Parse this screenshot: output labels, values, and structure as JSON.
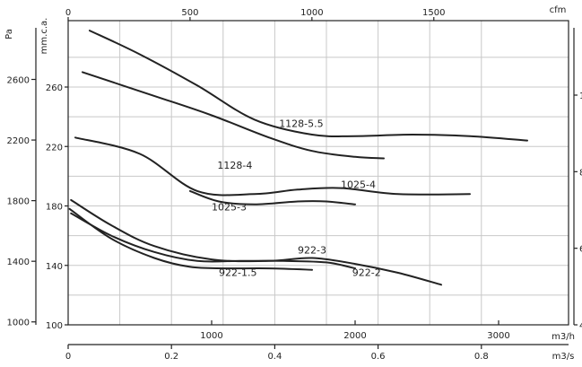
{
  "chart_data": {
    "type": "line",
    "title": "",
    "xlabel": "m3/h",
    "ylabel": "mm.c.a.",
    "xlim": [
      0,
      3500
    ],
    "ylim": [
      100,
      300
    ],
    "grid": true,
    "legend": "none",
    "axes": {
      "bottom": {
        "unit": "m3/h",
        "ticks": [
          1000,
          2000,
          3000
        ]
      },
      "bottom_secondary": {
        "unit": "m3/s",
        "ticks": [
          0,
          0.2,
          0.4,
          0.6,
          0.8
        ]
      },
      "top": {
        "unit": "cfm",
        "ticks": [
          0,
          500,
          1000,
          1500
        ]
      },
      "left_mm": {
        "unit": "mm.c.a.",
        "ticks": [
          100,
          140,
          180,
          220,
          260
        ]
      },
      "left_pa": {
        "unit": "Pa",
        "ticks": [
          1000,
          1400,
          1800,
          2200,
          2600
        ]
      },
      "right": {
        "unit": "",
        "ticks": [
          4,
          6,
          8,
          10
        ]
      }
    },
    "series": [
      {
        "name": "1128-5.5",
        "x": [
          150,
          500,
          900,
          1300,
          1700,
          2000,
          2400,
          2800,
          3200
        ],
        "y": [
          298,
          282,
          261,
          238,
          228,
          227,
          228,
          227,
          224
        ]
      },
      {
        "name": "1128-4",
        "x": [
          100,
          600,
          1000,
          1400,
          1700,
          2000,
          2200
        ],
        "y": [
          270,
          254,
          241,
          226,
          217,
          213,
          212
        ]
      },
      {
        "name": "1025-4",
        "x": [
          50,
          500,
          900,
          1300,
          1600,
          1900,
          2300,
          2800
        ],
        "y": [
          226,
          215,
          190,
          188,
          191,
          192,
          188,
          188
        ]
      },
      {
        "name": "1025-3",
        "x": [
          850,
          1050,
          1300,
          1600,
          1800,
          2000
        ],
        "y": [
          190,
          183,
          181,
          183,
          183,
          181
        ]
      },
      {
        "name": "922-3",
        "x": [
          20,
          300,
          600,
          1000,
          1400,
          1700,
          2000,
          2300,
          2600
        ],
        "y": [
          184,
          167,
          153,
          144,
          143,
          145,
          141,
          135,
          127
        ]
      },
      {
        "name": "922-2",
        "x": [
          20,
          300,
          600,
          900,
          1200,
          1500,
          1800,
          2000
        ],
        "y": [
          175,
          160,
          149,
          143,
          143,
          143,
          142,
          138
        ]
      },
      {
        "name": "922-1.5",
        "x": [
          10,
          300,
          600,
          850,
          1100,
          1400,
          1700
        ],
        "y": [
          178,
          158,
          145,
          139,
          138,
          138,
          137
        ]
      }
    ],
    "label_text": [
      "1128-5.5",
      "1128-4",
      "1025-4",
      "1025-3",
      "922-3",
      "922-2",
      "922-1.5"
    ]
  }
}
